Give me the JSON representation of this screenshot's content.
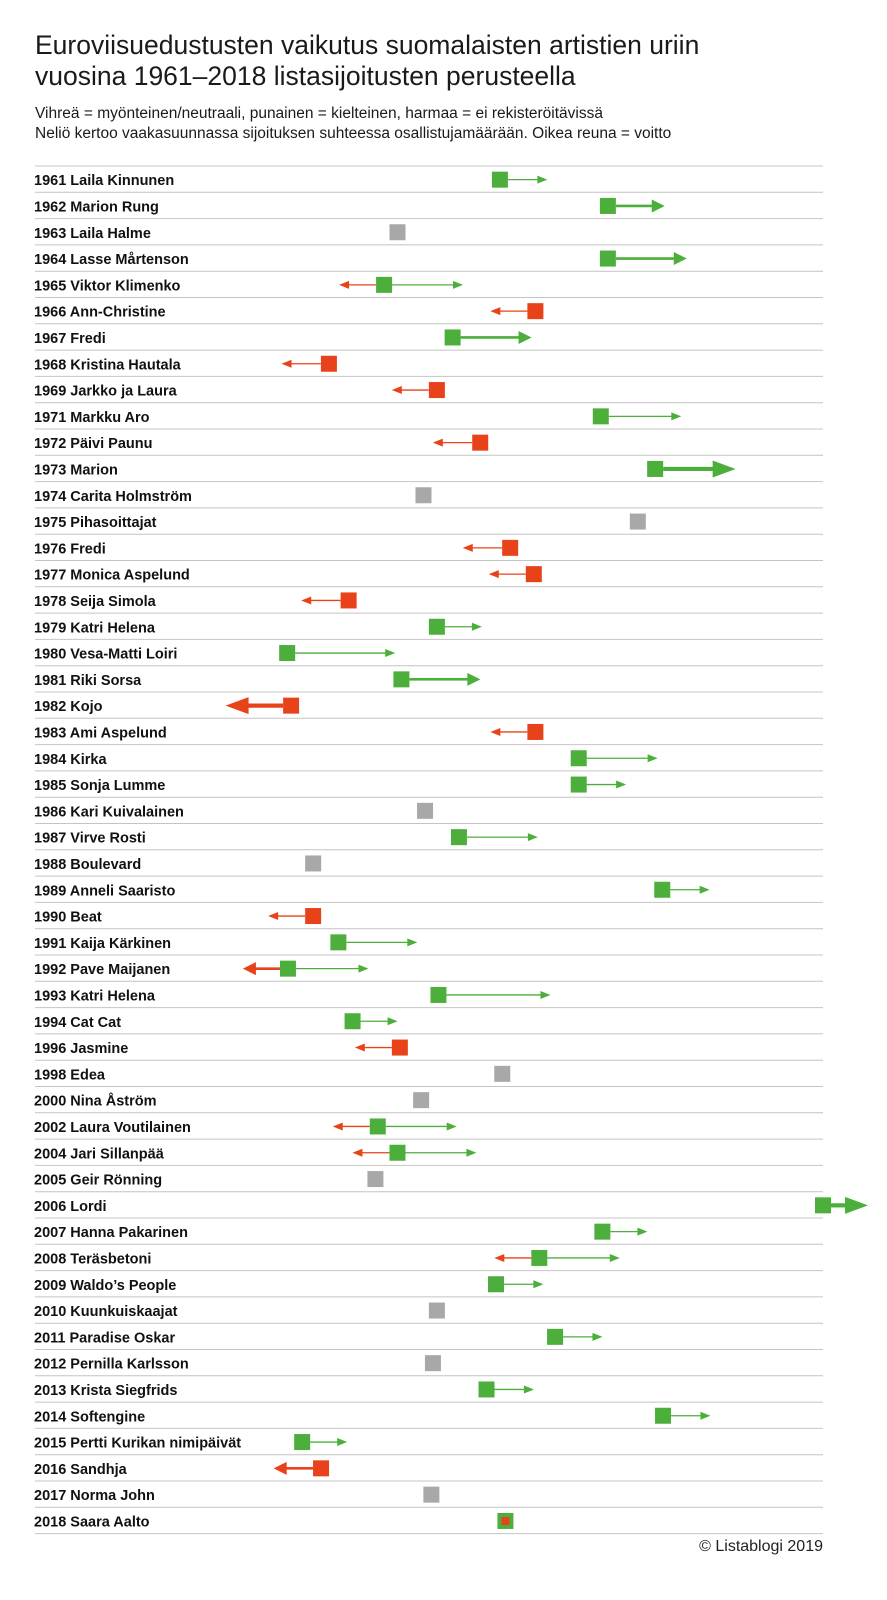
{
  "title_lines": [
    "Euroviisuedustusten vaikutus suomalaisten artistien uriin",
    "vuosina 1961–2018 listasijoitusten perusteella"
  ],
  "subtitle_lines": [
    "Vihreä = myönteinen/neutraali, punainen = kielteinen, harmaa = ei rekisteröitävissä",
    "Neliö kertoo vaakasuunnassa sijoituksen suhteessa osallistujamäärään. Oikea reuna = voitto"
  ],
  "credit": "© Listablogi 2019",
  "colors": {
    "positive": "#4caf3c",
    "negative": "#e8421a",
    "unknown": "#a8a8a8",
    "rule": "#c4c4c4"
  },
  "chart_data": {
    "type": "dot-arrow",
    "x_scale_note": "square position 0 = worst relative placement, 1 = win (right edge); arrow length in same units",
    "rows": [
      {
        "label": "1961 Laila Kinnunen",
        "status": "positive",
        "pos": 0.59,
        "pos_len": 0.05,
        "pos_w": 1
      },
      {
        "label": "1962 Marion Rung",
        "status": "positive",
        "pos": 0.727,
        "pos_len": 0.062,
        "pos_w": 2
      },
      {
        "label": "1963 Laila Halme",
        "status": "unknown",
        "pos": 0.46
      },
      {
        "label": "1964 Lasse Mårtenson",
        "status": "positive",
        "pos": 0.727,
        "pos_len": 0.09,
        "pos_w": 2
      },
      {
        "label": "1965 Viktor Klimenko",
        "status": "mixed",
        "pos": 0.443,
        "neg_len": 0.047,
        "neg_w": 1,
        "pos_len": 0.09,
        "pos_w": 1
      },
      {
        "label": "1966 Ann-Christine",
        "status": "negative",
        "pos": 0.635,
        "neg_len": 0.047,
        "neg_w": 1
      },
      {
        "label": "1967 Fredi",
        "status": "positive",
        "pos": 0.53,
        "pos_len": 0.09,
        "pos_w": 2
      },
      {
        "label": "1968 Kristina Hautala",
        "status": "negative",
        "pos": 0.373,
        "neg_len": 0.05,
        "neg_w": 1
      },
      {
        "label": "1969 Jarkko ja Laura",
        "status": "negative",
        "pos": 0.51,
        "neg_len": 0.047,
        "neg_w": 1
      },
      {
        "label": "1971 Markku Aro",
        "status": "positive",
        "pos": 0.718,
        "pos_len": 0.092,
        "pos_w": 1
      },
      {
        "label": "1972 Päivi Paunu",
        "status": "negative",
        "pos": 0.565,
        "neg_len": 0.05,
        "neg_w": 1
      },
      {
        "label": "1973 Marion",
        "status": "positive",
        "pos": 0.787,
        "pos_len": 0.092,
        "pos_w": 3
      },
      {
        "label": "1974 Carita Holmström",
        "status": "unknown",
        "pos": 0.493
      },
      {
        "label": "1975 Pihasoittajat",
        "status": "unknown",
        "pos": 0.765
      },
      {
        "label": "1976 Fredi",
        "status": "negative",
        "pos": 0.603,
        "neg_len": 0.05,
        "neg_w": 1
      },
      {
        "label": "1977 Monica Aspelund",
        "status": "negative",
        "pos": 0.633,
        "neg_len": 0.047,
        "neg_w": 1
      },
      {
        "label": "1978 Seija Simola",
        "status": "negative",
        "pos": 0.398,
        "neg_len": 0.05,
        "neg_w": 1
      },
      {
        "label": "1979 Katri Helena",
        "status": "positive",
        "pos": 0.51,
        "pos_len": 0.047,
        "pos_w": 1
      },
      {
        "label": "1980 Vesa-Matti Loiri",
        "status": "positive",
        "pos": 0.32,
        "pos_len": 0.127,
        "pos_w": 1
      },
      {
        "label": "1981 Riki Sorsa",
        "status": "positive",
        "pos": 0.465,
        "pos_len": 0.09,
        "pos_w": 2
      },
      {
        "label": "1982 Kojo",
        "status": "negative",
        "pos": 0.325,
        "neg_len": 0.073,
        "neg_w": 3
      },
      {
        "label": "1983 Ami Aspelund",
        "status": "negative",
        "pos": 0.635,
        "neg_len": 0.047,
        "neg_w": 1
      },
      {
        "label": "1984 Kirka",
        "status": "positive",
        "pos": 0.69,
        "pos_len": 0.09,
        "pos_w": 1
      },
      {
        "label": "1985 Sonja Lumme",
        "status": "positive",
        "pos": 0.69,
        "pos_len": 0.05,
        "pos_w": 1
      },
      {
        "label": "1986 Kari Kuivalainen",
        "status": "unknown",
        "pos": 0.495
      },
      {
        "label": "1987 Virve Rosti",
        "status": "positive",
        "pos": 0.538,
        "pos_len": 0.09,
        "pos_w": 1
      },
      {
        "label": "1988 Boulevard",
        "status": "unknown",
        "pos": 0.353
      },
      {
        "label": "1989 Anneli Saaristo",
        "status": "positive",
        "pos": 0.796,
        "pos_len": 0.05,
        "pos_w": 1
      },
      {
        "label": "1990 Beat",
        "status": "negative",
        "pos": 0.353,
        "neg_len": 0.047,
        "neg_w": 1
      },
      {
        "label": "1991 Kaija Kärkinen",
        "status": "positive",
        "pos": 0.385,
        "pos_len": 0.09,
        "pos_w": 1
      },
      {
        "label": "1992 Pave Maijanen",
        "status": "mixed",
        "pos": 0.321,
        "neg_len": 0.047,
        "neg_w": 2,
        "pos_len": 0.092,
        "pos_w": 1
      },
      {
        "label": "1993 Katri Helena",
        "status": "positive",
        "pos": 0.512,
        "pos_len": 0.132,
        "pos_w": 1
      },
      {
        "label": "1994 Cat Cat",
        "status": "positive",
        "pos": 0.403,
        "pos_len": 0.047,
        "pos_w": 1
      },
      {
        "label": "1996 Jasmine",
        "status": "negative",
        "pos": 0.463,
        "neg_len": 0.047,
        "neg_w": 1
      },
      {
        "label": "1998 Edea",
        "status": "unknown",
        "pos": 0.593
      },
      {
        "label": "2000 Nina Åström",
        "status": "unknown",
        "pos": 0.49
      },
      {
        "label": "2002 Laura Voutilainen",
        "status": "mixed",
        "pos": 0.435,
        "neg_len": 0.047,
        "neg_w": 1,
        "pos_len": 0.09,
        "pos_w": 1
      },
      {
        "label": "2004 Jari Sillanpää",
        "status": "mixed",
        "pos": 0.46,
        "neg_len": 0.047,
        "neg_w": 1,
        "pos_len": 0.09,
        "pos_w": 1
      },
      {
        "label": "2005 Geir Rönning",
        "status": "unknown",
        "pos": 0.432
      },
      {
        "label": "2006 Lordi",
        "status": "positive",
        "pos": 1.0,
        "pos_len": 0.047,
        "pos_w": 3
      },
      {
        "label": "2007 Hanna Pakarinen",
        "status": "positive",
        "pos": 0.72,
        "pos_len": 0.047,
        "pos_w": 1
      },
      {
        "label": "2008 Teräsbetoni",
        "status": "mixed",
        "pos": 0.64,
        "neg_len": 0.047,
        "neg_w": 1,
        "pos_len": 0.092,
        "pos_w": 1
      },
      {
        "label": "2009 Waldo’s People",
        "status": "positive",
        "pos": 0.585,
        "pos_len": 0.05,
        "pos_w": 1
      },
      {
        "label": "2010 Kuunkuiskaajat",
        "status": "unknown",
        "pos": 0.51
      },
      {
        "label": "2011 Paradise Oskar",
        "status": "positive",
        "pos": 0.66,
        "pos_len": 0.05,
        "pos_w": 1
      },
      {
        "label": "2012 Pernilla Karlsson",
        "status": "unknown",
        "pos": 0.505
      },
      {
        "label": "2013 Krista Siegfrids",
        "status": "positive",
        "pos": 0.573,
        "pos_len": 0.05,
        "pos_w": 1
      },
      {
        "label": "2014 Softengine",
        "status": "positive",
        "pos": 0.797,
        "pos_len": 0.05,
        "pos_w": 1
      },
      {
        "label": "2015 Pertti Kurikan nimipäivät",
        "status": "positive",
        "pos": 0.339,
        "pos_len": 0.047,
        "pos_w": 1
      },
      {
        "label": "2016 Sandhja",
        "status": "negative",
        "pos": 0.363,
        "neg_len": 0.05,
        "neg_w": 2
      },
      {
        "label": "2017 Norma John",
        "status": "unknown",
        "pos": 0.503
      },
      {
        "label": "2018 Saara Aalto",
        "status": "mixed_square",
        "pos": 0.597
      }
    ]
  }
}
